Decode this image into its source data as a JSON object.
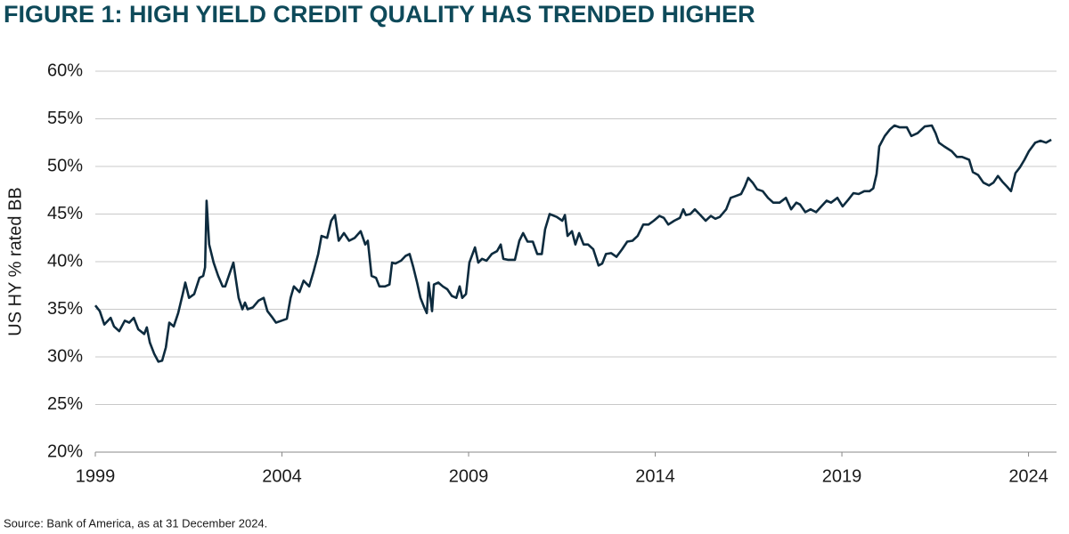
{
  "chart_data": {
    "type": "line",
    "title": "FIGURE 1: HIGH YIELD CREDIT QUALITY HAS TRENDED HIGHER",
    "y_label": "US HY % rated BB",
    "source": "Source: Bank of America, as at 31 December 2024.",
    "color": "#0d2b3e",
    "grid": true,
    "x": [
      1999.0,
      1999.12,
      1999.24,
      1999.41,
      1999.5,
      1999.64,
      1999.79,
      1999.91,
      2000.03,
      2000.15,
      2000.31,
      2000.38,
      2000.46,
      2000.58,
      2000.69,
      2000.79,
      2000.89,
      2000.98,
      2001.1,
      2001.22,
      2001.34,
      2001.41,
      2001.51,
      2001.65,
      2001.79,
      2001.89,
      2001.94,
      2001.98,
      2002.05,
      2002.17,
      2002.29,
      2002.41,
      2002.48,
      2002.6,
      2002.7,
      2002.77,
      2002.84,
      2002.94,
      2003.01,
      2003.08,
      2003.22,
      2003.37,
      2003.51,
      2003.61,
      2003.75,
      2003.84,
      2003.99,
      2004.13,
      2004.23,
      2004.32,
      2004.47,
      2004.58,
      2004.73,
      2004.85,
      2004.97,
      2005.06,
      2005.21,
      2005.32,
      2005.42,
      2005.52,
      2005.66,
      2005.8,
      2005.95,
      2006.11,
      2006.23,
      2006.3,
      2006.4,
      2006.52,
      2006.61,
      2006.76,
      2006.88,
      2006.95,
      2007.04,
      2007.19,
      2007.31,
      2007.42,
      2007.52,
      2007.62,
      2007.71,
      2007.81,
      2007.88,
      2007.93,
      2008.02,
      2008.07,
      2008.19,
      2008.31,
      2008.43,
      2008.55,
      2008.67,
      2008.76,
      2008.83,
      2008.93,
      2009.02,
      2009.17,
      2009.26,
      2009.36,
      2009.48,
      2009.62,
      2009.76,
      2009.86,
      2009.93,
      2010.05,
      2010.24,
      2010.36,
      2010.46,
      2010.58,
      2010.72,
      2010.84,
      2010.96,
      2011.05,
      2011.17,
      2011.36,
      2011.51,
      2011.58,
      2011.65,
      2011.77,
      2011.86,
      2011.96,
      2012.08,
      2012.2,
      2012.34,
      2012.48,
      2012.58,
      2012.68,
      2012.82,
      2012.96,
      2013.11,
      2013.25,
      2013.39,
      2013.53,
      2013.68,
      2013.82,
      2013.96,
      2014.11,
      2014.23,
      2014.35,
      2014.51,
      2014.66,
      2014.75,
      2014.82,
      2014.94,
      2015.06,
      2015.21,
      2015.35,
      2015.49,
      2015.61,
      2015.73,
      2015.9,
      2016.02,
      2016.16,
      2016.3,
      2016.4,
      2016.49,
      2016.61,
      2016.73,
      2016.88,
      2017.02,
      2017.16,
      2017.33,
      2017.5,
      2017.64,
      2017.78,
      2017.88,
      2018.02,
      2018.16,
      2018.31,
      2018.45,
      2018.59,
      2018.71,
      2018.88,
      2019.02,
      2019.17,
      2019.31,
      2019.45,
      2019.6,
      2019.74,
      2019.84,
      2019.93,
      2020.0,
      2020.15,
      2020.29,
      2020.41,
      2020.55,
      2020.74,
      2020.86,
      2021.03,
      2021.22,
      2021.41,
      2021.51,
      2021.6,
      2021.74,
      2021.94,
      2022.08,
      2022.22,
      2022.41,
      2022.51,
      2022.65,
      2022.79,
      2022.94,
      2023.06,
      2023.18,
      2023.3,
      2023.42,
      2023.53,
      2023.65,
      2023.77,
      2023.89,
      2024.01,
      2024.18,
      2024.32,
      2024.47,
      2024.61
    ],
    "values": [
      35.4,
      34.8,
      33.4,
      34.1,
      33.2,
      32.7,
      33.8,
      33.6,
      34.1,
      32.9,
      32.4,
      33.1,
      31.5,
      30.3,
      29.5,
      29.6,
      31.0,
      33.6,
      33.2,
      34.6,
      36.6,
      37.8,
      36.2,
      36.6,
      38.3,
      38.5,
      39.4,
      46.4,
      41.8,
      39.9,
      38.5,
      37.4,
      37.4,
      38.8,
      39.9,
      38.0,
      36.2,
      35.0,
      35.7,
      35.0,
      35.2,
      35.9,
      36.2,
      34.8,
      34.1,
      33.6,
      33.8,
      34.0,
      36.2,
      37.4,
      36.8,
      38.0,
      37.4,
      39.0,
      40.8,
      42.7,
      42.5,
      44.3,
      44.9,
      42.2,
      43.0,
      42.2,
      42.5,
      43.2,
      41.8,
      42.2,
      38.5,
      38.3,
      37.4,
      37.4,
      37.6,
      39.9,
      39.8,
      40.1,
      40.6,
      40.8,
      39.4,
      37.8,
      36.2,
      35.2,
      34.6,
      37.8,
      34.8,
      37.6,
      37.8,
      37.4,
      37.1,
      36.4,
      36.2,
      37.4,
      36.2,
      36.6,
      39.9,
      41.5,
      39.9,
      40.3,
      40.1,
      40.8,
      41.1,
      41.8,
      40.3,
      40.2,
      40.2,
      42.2,
      43.0,
      42.1,
      42.1,
      40.8,
      40.8,
      43.4,
      45.0,
      44.7,
      44.3,
      44.9,
      42.7,
      43.2,
      41.8,
      43.0,
      41.8,
      41.8,
      41.3,
      39.6,
      39.8,
      40.8,
      40.9,
      40.5,
      41.3,
      42.1,
      42.2,
      42.7,
      43.9,
      43.9,
      44.3,
      44.8,
      44.6,
      43.9,
      44.3,
      44.6,
      45.5,
      44.9,
      45.0,
      45.5,
      44.9,
      44.3,
      44.8,
      44.5,
      44.7,
      45.5,
      46.7,
      46.9,
      47.1,
      47.9,
      48.8,
      48.3,
      47.6,
      47.4,
      46.7,
      46.2,
      46.2,
      46.7,
      45.5,
      46.2,
      46.0,
      45.2,
      45.5,
      45.2,
      45.8,
      46.4,
      46.2,
      46.7,
      45.8,
      46.5,
      47.2,
      47.1,
      47.4,
      47.4,
      47.7,
      49.2,
      52.1,
      53.2,
      53.9,
      54.3,
      54.1,
      54.1,
      53.2,
      53.5,
      54.2,
      54.3,
      53.5,
      52.5,
      52.1,
      51.6,
      51.0,
      51.0,
      50.7,
      49.4,
      49.1,
      48.3,
      48.0,
      48.3,
      49.0,
      48.4,
      47.9,
      47.4,
      49.3,
      49.9,
      50.7,
      51.6,
      52.5,
      52.7,
      52.5,
      52.8
    ],
    "xlim": [
      1999,
      2024.75
    ],
    "xticks": [
      1999,
      2004,
      2009,
      2014,
      2019,
      2024
    ],
    "ylim": [
      20,
      60
    ],
    "yticks": [
      {
        "value": 20,
        "label": "20%"
      },
      {
        "value": 25,
        "label": "25%"
      },
      {
        "value": 30,
        "label": "30%"
      },
      {
        "value": 35,
        "label": "35%"
      },
      {
        "value": 40,
        "label": "40%"
      },
      {
        "value": 45,
        "label": "45%"
      },
      {
        "value": 50,
        "label": "50%"
      },
      {
        "value": 55,
        "label": "55%"
      },
      {
        "value": 60,
        "label": "60%"
      }
    ]
  }
}
